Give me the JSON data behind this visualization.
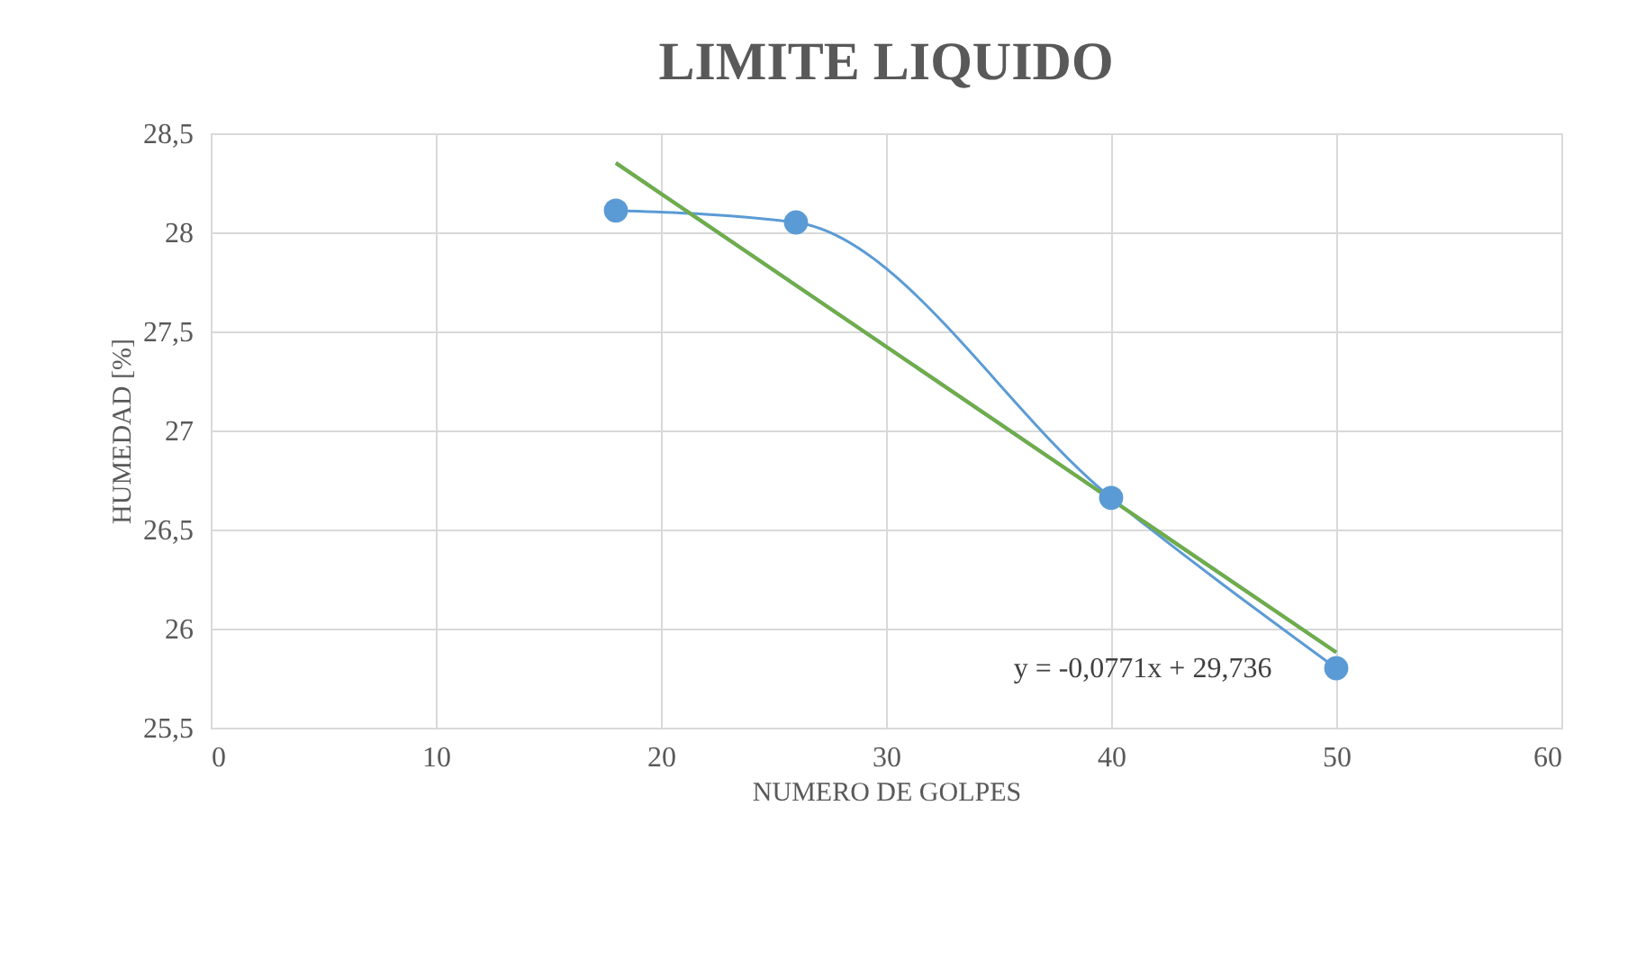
{
  "chart_data": {
    "type": "line",
    "title": "LIMITE  LIQUIDO",
    "xlabel": "NUMERO DE GOLPES",
    "ylabel": "HUMEDAD [%]",
    "series": [
      {
        "color": "#5b9bd5",
        "x": [
          18,
          26,
          40,
          50
        ],
        "values": [
          28.11,
          28.05,
          26.66,
          25.8
        ],
        "marker": "circle",
        "line_style": "solid"
      },
      {
        "color": "#5b9bd5",
        "x": [
          18,
          50
        ],
        "values": [
          28.35,
          25.88
        ],
        "marker": "none",
        "line_style": "solid"
      },
      {
        "color": "#70ad47",
        "x": [
          18,
          50
        ],
        "values": [
          28.35,
          25.88
        ],
        "marker": "none",
        "line_style": "solid"
      }
    ],
    "xlim": [
      0,
      60
    ],
    "xticks": [
      0,
      10,
      20,
      30,
      40,
      50,
      60
    ],
    "ylim": [
      25.5,
      28.5
    ],
    "yticks": [
      {
        "value": 25.5,
        "label": "25,5"
      },
      26,
      {
        "value": 26.5,
        "label": "26,5"
      },
      27,
      {
        "value": 27.5,
        "label": "27,5"
      },
      28,
      {
        "value": 28.5,
        "label": "28,5"
      }
    ],
    "annotations": [
      "y = -0,0771x + 29,736"
    ],
    "grid": true
  }
}
